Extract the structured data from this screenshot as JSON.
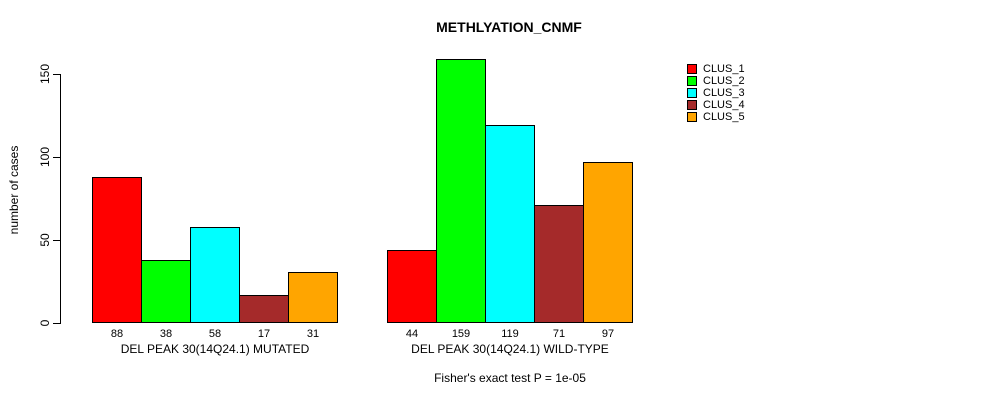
{
  "chart_data": {
    "type": "bar",
    "title": "METHLYATION_CNMF",
    "ylabel": "number of cases",
    "xlabel": "",
    "footer": "Fisher's exact test P = 1e-05",
    "ylim": [
      0,
      150
    ],
    "yticks": [
      0,
      50,
      100,
      150
    ],
    "grid": false,
    "legend_position": "right",
    "bar_border_color": "#000000",
    "background_color": "#ffffff",
    "series": [
      {
        "name": "CLUS_1",
        "color": "#FF0000"
      },
      {
        "name": "CLUS_2",
        "color": "#00FF00"
      },
      {
        "name": "CLUS_3",
        "color": "#00FFFF"
      },
      {
        "name": "CLUS_4",
        "color": "#A52A2A"
      },
      {
        "name": "CLUS_5",
        "color": "#FFA500"
      }
    ],
    "groups": [
      {
        "label": "DEL PEAK 30(14Q24.1) MUTATED",
        "values": [
          88,
          38,
          58,
          17,
          31
        ]
      },
      {
        "label": "DEL PEAK 30(14Q24.1) WILD-TYPE",
        "values": [
          44,
          159,
          119,
          71,
          97
        ]
      }
    ]
  }
}
